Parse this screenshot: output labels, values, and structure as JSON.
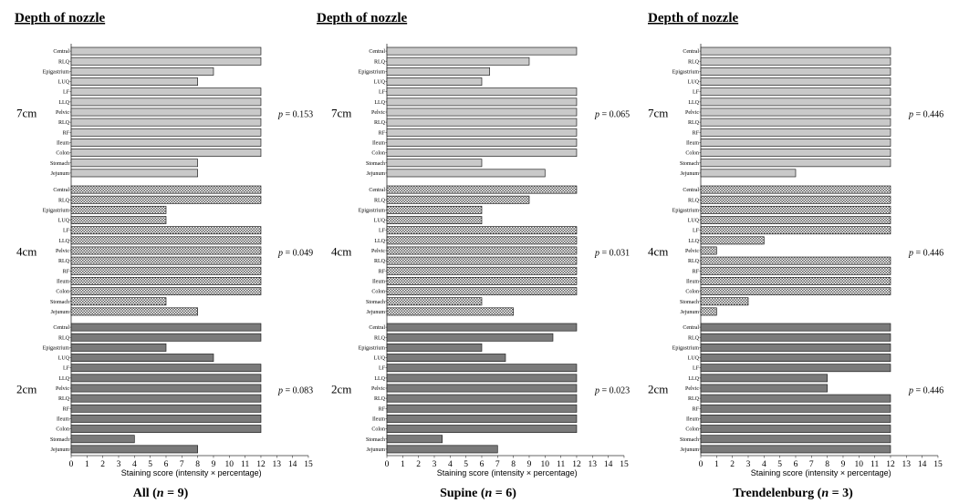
{
  "colors": {
    "depth_7cm": "#c9c9c9",
    "depth_4cm": "#9a9a9a",
    "depth_2cm": "#7a7a7a",
    "stroke": "#222222"
  },
  "chart_data": [
    {
      "type": "bar",
      "orientation": "horizontal",
      "header": "Depth of nozzle",
      "title": "All",
      "n": "9",
      "xlabel": "Staining score (intensity × percentage)",
      "xlim": [
        0,
        15
      ],
      "xticks": [
        0,
        1,
        2,
        3,
        4,
        5,
        6,
        7,
        8,
        9,
        10,
        11,
        12,
        13,
        14,
        15
      ],
      "categories": [
        "Central",
        "RLQ",
        "Epigastrium",
        "LUQ",
        "LF",
        "LLQ",
        "Pelvic",
        "RLQ",
        "RF",
        "Ileum",
        "Colon",
        "Stomach",
        "Jejunum"
      ],
      "groups": [
        {
          "label": "7cm",
          "p_value": "0.153",
          "categories": [
            "Central",
            "RLQ",
            "Epigastrium",
            "LUQ",
            "LF",
            "LLQ",
            "Pelvic",
            "RLQ",
            "RF",
            "Ileum",
            "Colon",
            "Stomach",
            "Jejunum"
          ],
          "values": [
            12,
            12,
            9,
            8,
            12,
            12,
            12,
            12,
            12,
            12,
            12,
            8,
            8
          ]
        },
        {
          "label": "4cm",
          "p_value": "0.049",
          "categories": [
            "Central",
            "RLQ",
            "Epigastrium",
            "LUQ",
            "LF",
            "LLQ",
            "Pelvic",
            "RLQ",
            "RF",
            "Ileum",
            "Colon",
            "Stomach",
            "Jejunum"
          ],
          "values": [
            12,
            12,
            6,
            6,
            12,
            12,
            12,
            12,
            12,
            12,
            12,
            6,
            8
          ]
        },
        {
          "label": "2cm",
          "p_value": "0.083",
          "categories": [
            "Central",
            "RLQ",
            "Epigastrium",
            "LUQ",
            "LF",
            "LLQ",
            "Pelvic",
            "RLQ",
            "RF",
            "Ileum",
            "Colon",
            "Stomach",
            "Jejunum"
          ],
          "values": [
            12,
            12,
            6,
            9,
            12,
            12,
            12,
            12,
            12,
            12,
            12,
            4,
            8
          ]
        }
      ]
    },
    {
      "type": "bar",
      "orientation": "horizontal",
      "header": "Depth of nozzle",
      "title": "Supine",
      "n": "6",
      "xlabel": "Staining score (intensity × percentage)",
      "xlim": [
        0,
        15
      ],
      "xticks": [
        0,
        1,
        2,
        3,
        4,
        5,
        6,
        7,
        8,
        9,
        10,
        11,
        12,
        13,
        14,
        15
      ],
      "categories": [
        "Central",
        "RLQ",
        "Epigastrium",
        "LUQ",
        "LF",
        "LLQ",
        "Pelvic",
        "RLQ",
        "RF",
        "Ileum",
        "Colon",
        "Stomach",
        "Jejunum"
      ],
      "groups": [
        {
          "label": "7cm",
          "p_value": "0.065",
          "categories": [
            "Central",
            "RLQ",
            "Epigastrium",
            "LUQ",
            "LF",
            "LLQ",
            "Pelvic",
            "RLQ",
            "RF",
            "Ileum",
            "Colon",
            "Stomach",
            "Jejunum"
          ],
          "values": [
            12,
            9,
            6.5,
            6,
            12,
            12,
            12,
            12,
            12,
            12,
            12,
            6,
            10
          ]
        },
        {
          "label": "4cm",
          "p_value": "0.031",
          "categories": [
            "Central",
            "RLQ",
            "Epigastrium",
            "LUQ",
            "LF",
            "LLQ",
            "Pelvic",
            "RLQ",
            "RF",
            "Ileum",
            "Colon",
            "Stomach",
            "Jejunum"
          ],
          "values": [
            12,
            9,
            6,
            6,
            12,
            12,
            12,
            12,
            12,
            12,
            12,
            6,
            8
          ]
        },
        {
          "label": "2cm",
          "p_value": "0.023",
          "categories": [
            "Central",
            "RLQ",
            "Epigastrium",
            "LUQ",
            "LF",
            "LLQ",
            "Pelvic",
            "RLQ",
            "RF",
            "Ileum",
            "Colon",
            "Stomach",
            "Jejunum"
          ],
          "values": [
            12,
            10.5,
            6,
            7.5,
            12,
            12,
            12,
            12,
            12,
            12,
            12,
            3.5,
            7
          ]
        }
      ]
    },
    {
      "type": "bar",
      "orientation": "horizontal",
      "header": "Depth of nozzle",
      "title": "Trendelenburg",
      "n": "3",
      "xlabel": "Staining score (intensity × percentage)",
      "xlim": [
        0,
        15
      ],
      "xticks": [
        0,
        1,
        2,
        3,
        4,
        5,
        6,
        7,
        8,
        9,
        10,
        11,
        12,
        13,
        14,
        15
      ],
      "categories": [
        "Central",
        "RLQ",
        "Epigastrium",
        "LUQ",
        "LF",
        "LLQ",
        "Pelvic",
        "RLQ",
        "RF",
        "Ileum",
        "Colon",
        "Stomach",
        "Jejunum"
      ],
      "groups": [
        {
          "label": "7cm",
          "p_value": "0.446",
          "categories": [
            "Central",
            "RLQ",
            "Epigastrium",
            "LUQ",
            "LF",
            "LLQ",
            "Pelvic",
            "RLQ",
            "RF",
            "Ileum",
            "Colon",
            "Stomach",
            "Jejunum"
          ],
          "values": [
            12,
            12,
            12,
            12,
            12,
            12,
            12,
            12,
            12,
            12,
            12,
            12,
            6
          ]
        },
        {
          "label": "4cm",
          "p_value": "0.446",
          "categories": [
            "Central",
            "RLQ",
            "Epigastrium",
            "LUQ",
            "LF",
            "LLQ",
            "Pelvic",
            "RLQ",
            "RF",
            "Ileum",
            "Colon",
            "Stomach",
            "Jejunum"
          ],
          "values": [
            12,
            12,
            12,
            12,
            12,
            4,
            1,
            12,
            12,
            12,
            12,
            3,
            1
          ]
        },
        {
          "label": "2cm",
          "p_value": "0.446",
          "categories": [
            "Central",
            "RLQ",
            "Epigastrium",
            "LUQ",
            "LF",
            "LLQ",
            "Pelvic",
            "RLQ",
            "RF",
            "Ileum",
            "Colon",
            "Stomach",
            "Jejunum"
          ],
          "values": [
            12,
            12,
            12,
            12,
            12,
            8,
            8,
            12,
            12,
            12,
            12,
            12,
            12
          ]
        }
      ]
    }
  ]
}
